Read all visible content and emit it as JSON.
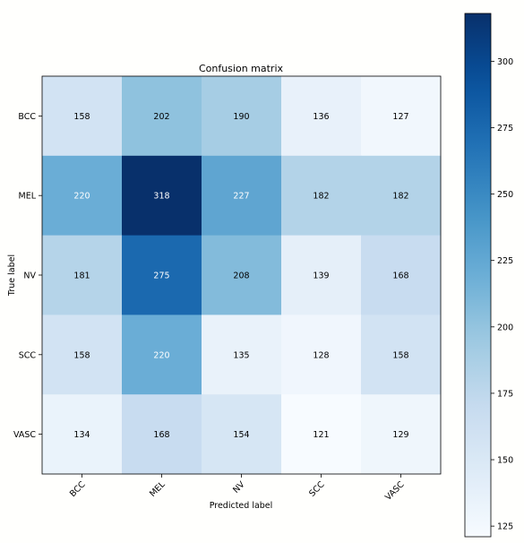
{
  "chart_data": {
    "type": "heatmap",
    "title": "Confusion matrix",
    "xlabel": "Predicted label",
    "ylabel": "True label",
    "x_categories": [
      "BCC",
      "MEL",
      "NV",
      "SCC",
      "VASC"
    ],
    "y_categories": [
      "BCC",
      "MEL",
      "NV",
      "SCC",
      "VASC"
    ],
    "values": [
      [
        158,
        202,
        190,
        136,
        127
      ],
      [
        220,
        318,
        227,
        182,
        182
      ],
      [
        181,
        275,
        208,
        139,
        168
      ],
      [
        158,
        220,
        135,
        128,
        158
      ],
      [
        134,
        168,
        154,
        121,
        129
      ]
    ],
    "colormap": "Blues",
    "colorbar": {
      "range": [
        121,
        318
      ],
      "ticks": [
        125,
        150,
        175,
        200,
        225,
        250,
        275,
        300
      ]
    },
    "text_colors": {
      "dark": "#000000",
      "light": "#ffffff"
    }
  }
}
